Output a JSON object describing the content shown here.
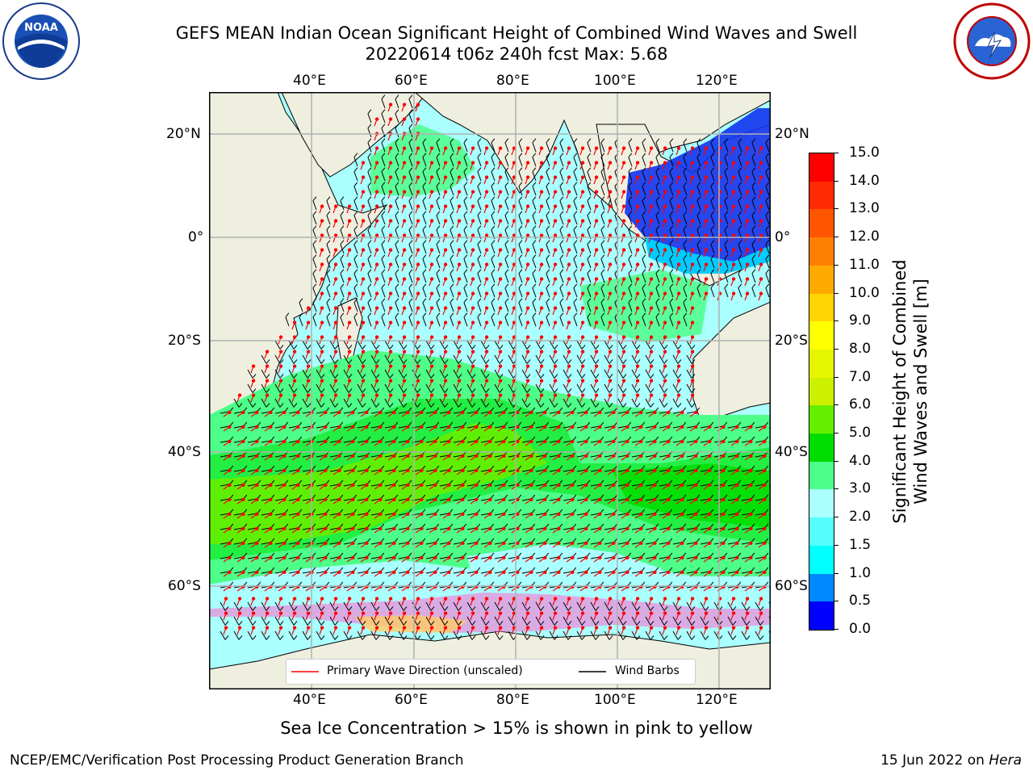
{
  "header": {
    "title_line1": "GEFS MEAN Indian Ocean Significant Height of Combined Wind Waves and Swell",
    "title_line2": "20220614 t06z 240h fcst   Max: 5.68"
  },
  "logos": {
    "noaa_text": "NOAA",
    "nws_text": "NATIONAL WEATHER SERVICE"
  },
  "map": {
    "lon_ticks_top": [
      "40°E",
      "60°E",
      "80°E",
      "100°E",
      "120°E"
    ],
    "lon_ticks_bottom": [
      "40°E",
      "60°E",
      "80°E",
      "100°E",
      "120°E"
    ],
    "lat_ticks_left": [
      "20°N",
      "0°",
      "20°S",
      "40°S",
      "60°S"
    ],
    "lat_ticks_right": [
      "20°N",
      "0°",
      "20°S",
      "40°S",
      "60°S"
    ],
    "legend": {
      "primary_wave_label": "Primary Wave Direction (unscaled)",
      "wind_barbs_label": "Wind Barbs",
      "primary_wave_color": "#ff0000",
      "wind_barbs_color": "#000000"
    }
  },
  "colorbar": {
    "label_line1": "Significant Height of Combined",
    "label_line2": "Wind Waves and Swell [m]",
    "ticks": [
      "15.0",
      "14.0",
      "13.0",
      "12.0",
      "11.0",
      "10.0",
      "9.0",
      "8.0",
      "7.0",
      "6.0",
      "5.0",
      "4.0",
      "3.0",
      "2.0",
      "1.5",
      "1.0",
      "0.5",
      "0.0"
    ],
    "colors": [
      "#ff0000",
      "#ff2a00",
      "#ff5500",
      "#ff8000",
      "#ffaa00",
      "#ffd400",
      "#ffff00",
      "#e6f500",
      "#ccf000",
      "#66ee00",
      "#00dd00",
      "#4dff88",
      "#aaffff",
      "#55ffff",
      "#00ffff",
      "#0088ff",
      "#0000ff"
    ]
  },
  "subtitle": "Sea Ice Concentration > 15% is shown in pink to yellow",
  "footer": {
    "left": "NCEP/EMC/Verification Post Processing Product Generation Branch",
    "right_prefix": "15 Jun 2022 on ",
    "right_host": "Hera"
  }
}
